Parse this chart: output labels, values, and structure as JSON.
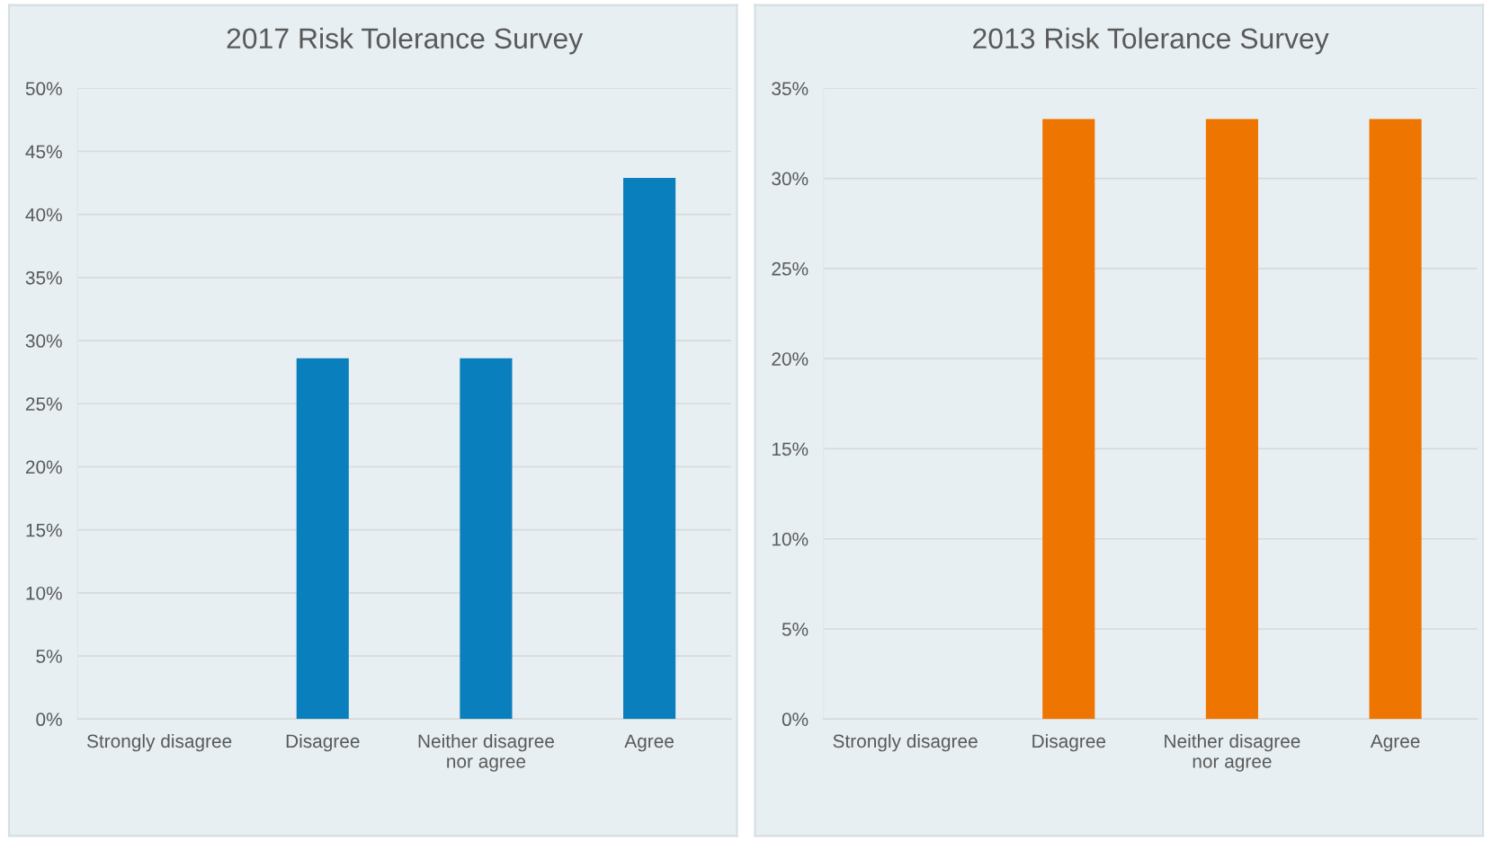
{
  "chart_data": [
    {
      "type": "bar",
      "title": "2017 Risk Tolerance Survey",
      "categories": [
        "Strongly disagree",
        "Disagree",
        "Neither disagree\nnor agree",
        "Agree"
      ],
      "values": [
        0,
        28.6,
        28.6,
        42.9
      ],
      "color": "#0a7fbd",
      "ylim": [
        0,
        50
      ],
      "yticks": [
        {
          "value": 0,
          "label": "0%"
        },
        {
          "value": 5,
          "label": "5%"
        },
        {
          "value": 10,
          "label": "10%"
        },
        {
          "value": 15,
          "label": "15%"
        },
        {
          "value": 20,
          "label": "20%"
        },
        {
          "value": 25,
          "label": "25%"
        },
        {
          "value": 30,
          "label": "30%"
        },
        {
          "value": 35,
          "label": "35%"
        },
        {
          "value": 40,
          "label": "40%"
        },
        {
          "value": 45,
          "label": "45%"
        },
        {
          "value": 50,
          "label": "50%"
        }
      ],
      "grid": "y",
      "legend": false
    },
    {
      "type": "bar",
      "title": "2013 Risk Tolerance Survey",
      "categories": [
        "Strongly disagree",
        "Disagree",
        "Neither disagree\nnor agree",
        "Agree"
      ],
      "values": [
        0,
        33.3,
        33.3,
        33.3
      ],
      "color": "#ee7600",
      "ylim": [
        0,
        35
      ],
      "yticks": [
        {
          "value": 0,
          "label": "0%"
        },
        {
          "value": 5,
          "label": "5%"
        },
        {
          "value": 10,
          "label": "10%"
        },
        {
          "value": 15,
          "label": "15%"
        },
        {
          "value": 20,
          "label": "20%"
        },
        {
          "value": 25,
          "label": "25%"
        },
        {
          "value": 30,
          "label": "30%"
        },
        {
          "value": 35,
          "label": "35%"
        }
      ],
      "grid": "y",
      "legend": false
    }
  ]
}
